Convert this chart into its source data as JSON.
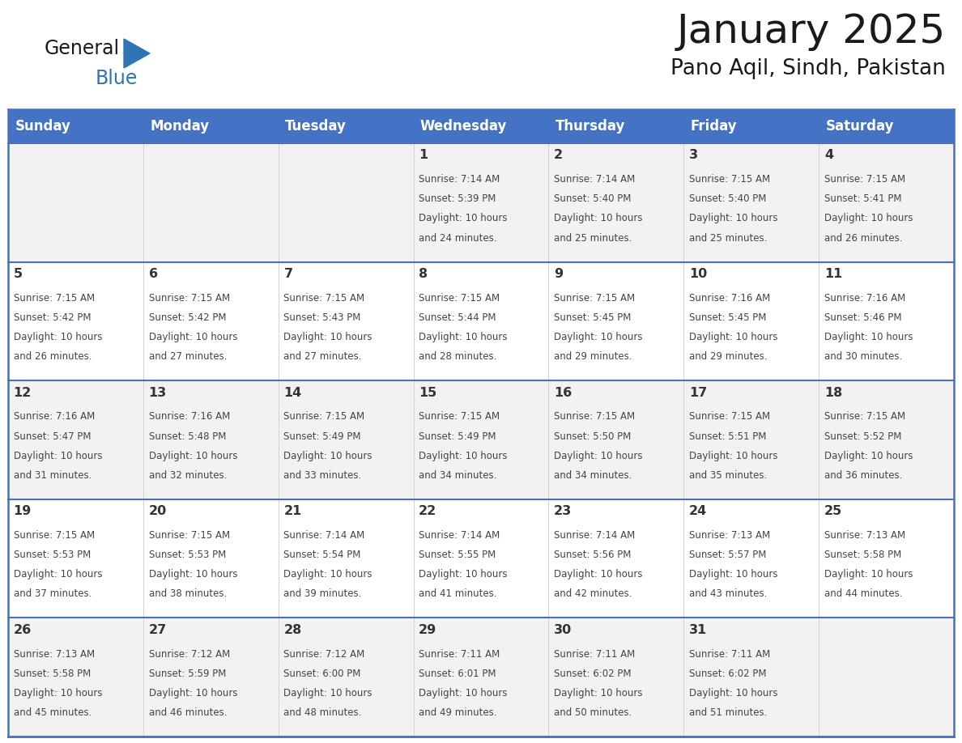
{
  "title": "January 2025",
  "subtitle": "Pano Aqil, Sindh, Pakistan",
  "header_color": "#4472C4",
  "header_text_color": "#FFFFFF",
  "days_of_week": [
    "Sunday",
    "Monday",
    "Tuesday",
    "Wednesday",
    "Thursday",
    "Friday",
    "Saturday"
  ],
  "cell_bg_even": "#F2F2F2",
  "cell_bg_odd": "#FFFFFF",
  "border_color": "#4472C4",
  "row_sep_color": "#4472C4",
  "day_num_color": "#333333",
  "detail_color": "#444444",
  "logo_general_color": "#1a1a1a",
  "logo_blue_color": "#2E75B6",
  "calendar": [
    [
      null,
      null,
      null,
      {
        "day": 1,
        "sunrise": "7:14 AM",
        "sunset": "5:39 PM",
        "daylight": "10 hours and 24 minutes."
      },
      {
        "day": 2,
        "sunrise": "7:14 AM",
        "sunset": "5:40 PM",
        "daylight": "10 hours and 25 minutes."
      },
      {
        "day": 3,
        "sunrise": "7:15 AM",
        "sunset": "5:40 PM",
        "daylight": "10 hours and 25 minutes."
      },
      {
        "day": 4,
        "sunrise": "7:15 AM",
        "sunset": "5:41 PM",
        "daylight": "10 hours and 26 minutes."
      }
    ],
    [
      {
        "day": 5,
        "sunrise": "7:15 AM",
        "sunset": "5:42 PM",
        "daylight": "10 hours and 26 minutes."
      },
      {
        "day": 6,
        "sunrise": "7:15 AM",
        "sunset": "5:42 PM",
        "daylight": "10 hours and 27 minutes."
      },
      {
        "day": 7,
        "sunrise": "7:15 AM",
        "sunset": "5:43 PM",
        "daylight": "10 hours and 27 minutes."
      },
      {
        "day": 8,
        "sunrise": "7:15 AM",
        "sunset": "5:44 PM",
        "daylight": "10 hours and 28 minutes."
      },
      {
        "day": 9,
        "sunrise": "7:15 AM",
        "sunset": "5:45 PM",
        "daylight": "10 hours and 29 minutes."
      },
      {
        "day": 10,
        "sunrise": "7:16 AM",
        "sunset": "5:45 PM",
        "daylight": "10 hours and 29 minutes."
      },
      {
        "day": 11,
        "sunrise": "7:16 AM",
        "sunset": "5:46 PM",
        "daylight": "10 hours and 30 minutes."
      }
    ],
    [
      {
        "day": 12,
        "sunrise": "7:16 AM",
        "sunset": "5:47 PM",
        "daylight": "10 hours and 31 minutes."
      },
      {
        "day": 13,
        "sunrise": "7:16 AM",
        "sunset": "5:48 PM",
        "daylight": "10 hours and 32 minutes."
      },
      {
        "day": 14,
        "sunrise": "7:15 AM",
        "sunset": "5:49 PM",
        "daylight": "10 hours and 33 minutes."
      },
      {
        "day": 15,
        "sunrise": "7:15 AM",
        "sunset": "5:49 PM",
        "daylight": "10 hours and 34 minutes."
      },
      {
        "day": 16,
        "sunrise": "7:15 AM",
        "sunset": "5:50 PM",
        "daylight": "10 hours and 34 minutes."
      },
      {
        "day": 17,
        "sunrise": "7:15 AM",
        "sunset": "5:51 PM",
        "daylight": "10 hours and 35 minutes."
      },
      {
        "day": 18,
        "sunrise": "7:15 AM",
        "sunset": "5:52 PM",
        "daylight": "10 hours and 36 minutes."
      }
    ],
    [
      {
        "day": 19,
        "sunrise": "7:15 AM",
        "sunset": "5:53 PM",
        "daylight": "10 hours and 37 minutes."
      },
      {
        "day": 20,
        "sunrise": "7:15 AM",
        "sunset": "5:53 PM",
        "daylight": "10 hours and 38 minutes."
      },
      {
        "day": 21,
        "sunrise": "7:14 AM",
        "sunset": "5:54 PM",
        "daylight": "10 hours and 39 minutes."
      },
      {
        "day": 22,
        "sunrise": "7:14 AM",
        "sunset": "5:55 PM",
        "daylight": "10 hours and 41 minutes."
      },
      {
        "day": 23,
        "sunrise": "7:14 AM",
        "sunset": "5:56 PM",
        "daylight": "10 hours and 42 minutes."
      },
      {
        "day": 24,
        "sunrise": "7:13 AM",
        "sunset": "5:57 PM",
        "daylight": "10 hours and 43 minutes."
      },
      {
        "day": 25,
        "sunrise": "7:13 AM",
        "sunset": "5:58 PM",
        "daylight": "10 hours and 44 minutes."
      }
    ],
    [
      {
        "day": 26,
        "sunrise": "7:13 AM",
        "sunset": "5:58 PM",
        "daylight": "10 hours and 45 minutes."
      },
      {
        "day": 27,
        "sunrise": "7:12 AM",
        "sunset": "5:59 PM",
        "daylight": "10 hours and 46 minutes."
      },
      {
        "day": 28,
        "sunrise": "7:12 AM",
        "sunset": "6:00 PM",
        "daylight": "10 hours and 48 minutes."
      },
      {
        "day": 29,
        "sunrise": "7:11 AM",
        "sunset": "6:01 PM",
        "daylight": "10 hours and 49 minutes."
      },
      {
        "day": 30,
        "sunrise": "7:11 AM",
        "sunset": "6:02 PM",
        "daylight": "10 hours and 50 minutes."
      },
      {
        "day": 31,
        "sunrise": "7:11 AM",
        "sunset": "6:02 PM",
        "daylight": "10 hours and 51 minutes."
      },
      null
    ]
  ],
  "n_cols": 7,
  "n_rows": 5
}
